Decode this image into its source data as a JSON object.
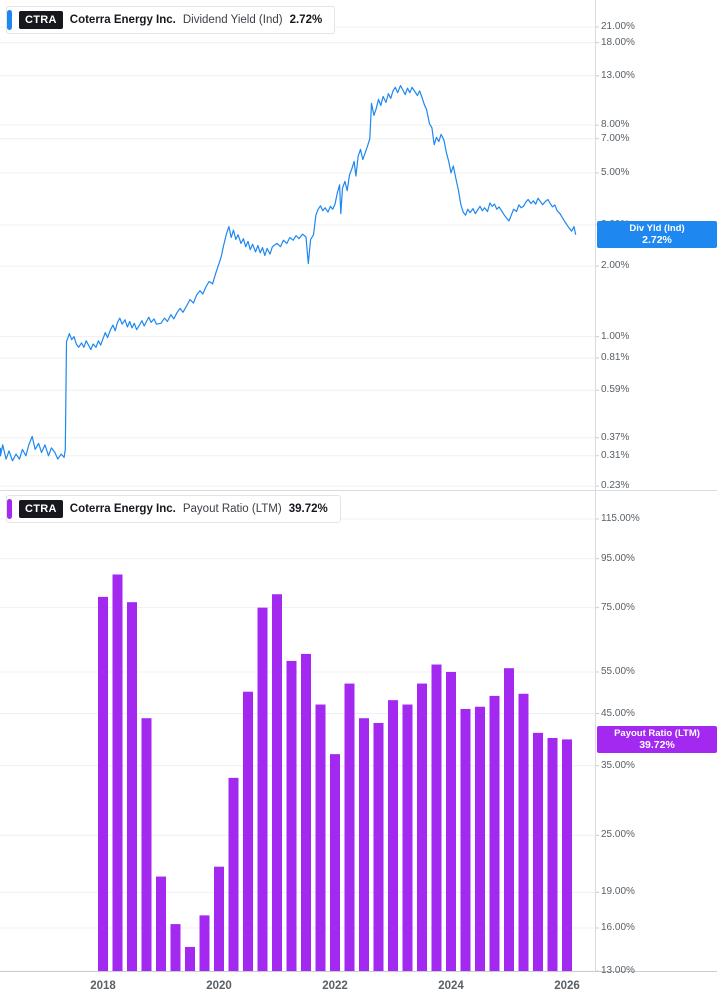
{
  "panels": [
    {
      "legend": {
        "ticker": "CTRA",
        "company": "Coterra Energy Inc.",
        "metric": "Dividend Yield (Ind)",
        "value": "2.72%"
      },
      "badge": {
        "line1": "Div Yld (Ind)",
        "line2": "2.72%",
        "v": 2.72
      },
      "color": "#1E87F0",
      "ticks": [
        [
          "21.00%",
          21
        ],
        [
          "18.00%",
          18
        ],
        [
          "13.00%",
          13
        ],
        [
          "8.00%",
          8
        ],
        [
          "7.00%",
          7
        ],
        [
          "5.00%",
          5
        ],
        [
          "3.00%",
          3
        ],
        [
          "2.00%",
          2
        ],
        [
          "1.00%",
          1
        ],
        [
          "0.81%",
          0.81
        ],
        [
          "0.59%",
          0.59
        ],
        [
          "0.37%",
          0.37
        ],
        [
          "0.31%",
          0.31
        ],
        [
          "0.23%",
          0.23
        ]
      ]
    },
    {
      "legend": {
        "ticker": "CTRA",
        "company": "Coterra Energy Inc.",
        "metric": "Payout Ratio (LTM)",
        "value": "39.72%"
      },
      "badge": {
        "line1": "Payout Ratio (LTM)",
        "line2": "39.72%",
        "v": 39.72
      },
      "color": "#A328F0",
      "ticks": [
        [
          "115.00%",
          115
        ],
        [
          "95.00%",
          95
        ],
        [
          "75.00%",
          75
        ],
        [
          "55.00%",
          55
        ],
        [
          "45.00%",
          45
        ],
        [
          "35.00%",
          35
        ],
        [
          "25.00%",
          25
        ],
        [
          "19.00%",
          19
        ],
        [
          "16.00%",
          16
        ],
        [
          "13.00%",
          13
        ]
      ]
    }
  ],
  "x_axis": {
    "labels": [
      "2018",
      "2020",
      "2022",
      "2024",
      "2026"
    ]
  },
  "chart_data": [
    {
      "type": "line",
      "name": "Dividend Yield (Ind)",
      "ticker": "CTRA",
      "unit": "percent",
      "x_unit": "decimal_year",
      "log_scale": true,
      "ylim": [
        0.228,
        25.3
      ],
      "xlim": [
        2016.17,
        2026.25
      ],
      "last_value": 2.72,
      "points": [
        [
          2016.17,
          0.335
        ],
        [
          2016.22,
          0.31
        ],
        [
          2016.27,
          0.345
        ],
        [
          2016.33,
          0.3
        ],
        [
          2016.38,
          0.325
        ],
        [
          2016.44,
          0.295
        ],
        [
          2016.5,
          0.315
        ],
        [
          2016.56,
          0.3
        ],
        [
          2016.61,
          0.33
        ],
        [
          2016.67,
          0.31
        ],
        [
          2016.72,
          0.345
        ],
        [
          2016.78,
          0.375
        ],
        [
          2016.83,
          0.33
        ],
        [
          2016.89,
          0.35
        ],
        [
          2016.94,
          0.32
        ],
        [
          2017.0,
          0.345
        ],
        [
          2017.06,
          0.31
        ],
        [
          2017.11,
          0.335
        ],
        [
          2017.17,
          0.32
        ],
        [
          2017.22,
          0.3
        ],
        [
          2017.28,
          0.315
        ],
        [
          2017.33,
          0.305
        ],
        [
          2017.35,
          0.33
        ],
        [
          2017.37,
          0.95
        ],
        [
          2017.42,
          1.03
        ],
        [
          2017.46,
          0.97
        ],
        [
          2017.5,
          1.0
        ],
        [
          2017.54,
          0.93
        ],
        [
          2017.58,
          0.9
        ],
        [
          2017.63,
          0.94
        ],
        [
          2017.67,
          0.9
        ],
        [
          2017.71,
          0.96
        ],
        [
          2017.75,
          0.92
        ],
        [
          2017.79,
          0.88
        ],
        [
          2017.83,
          0.93
        ],
        [
          2017.88,
          0.9
        ],
        [
          2017.92,
          0.96
        ],
        [
          2017.96,
          0.92
        ],
        [
          2018.0,
          0.98
        ],
        [
          2018.04,
          1.04
        ],
        [
          2018.08,
          0.99
        ],
        [
          2018.13,
          1.07
        ],
        [
          2018.17,
          1.12
        ],
        [
          2018.21,
          1.06
        ],
        [
          2018.25,
          1.15
        ],
        [
          2018.29,
          1.2
        ],
        [
          2018.33,
          1.13
        ],
        [
          2018.38,
          1.18
        ],
        [
          2018.42,
          1.1
        ],
        [
          2018.46,
          1.16
        ],
        [
          2018.5,
          1.09
        ],
        [
          2018.54,
          1.14
        ],
        [
          2018.58,
          1.07
        ],
        [
          2018.63,
          1.12
        ],
        [
          2018.67,
          1.17
        ],
        [
          2018.71,
          1.11
        ],
        [
          2018.75,
          1.16
        ],
        [
          2018.79,
          1.21
        ],
        [
          2018.83,
          1.15
        ],
        [
          2018.88,
          1.19
        ],
        [
          2018.92,
          1.13
        ],
        [
          2019.0,
          1.14
        ],
        [
          2019.06,
          1.2
        ],
        [
          2019.11,
          1.16
        ],
        [
          2019.17,
          1.24
        ],
        [
          2019.22,
          1.19
        ],
        [
          2019.28,
          1.27
        ],
        [
          2019.33,
          1.32
        ],
        [
          2019.38,
          1.27
        ],
        [
          2019.44,
          1.35
        ],
        [
          2019.5,
          1.44
        ],
        [
          2019.56,
          1.39
        ],
        [
          2019.61,
          1.5
        ],
        [
          2019.67,
          1.57
        ],
        [
          2019.72,
          1.52
        ],
        [
          2019.78,
          1.64
        ],
        [
          2019.83,
          1.72
        ],
        [
          2019.89,
          1.68
        ],
        [
          2019.94,
          1.85
        ],
        [
          2020.0,
          2.05
        ],
        [
          2020.04,
          2.2
        ],
        [
          2020.08,
          2.45
        ],
        [
          2020.13,
          2.75
        ],
        [
          2020.17,
          2.95
        ],
        [
          2020.21,
          2.65
        ],
        [
          2020.25,
          2.85
        ],
        [
          2020.29,
          2.6
        ],
        [
          2020.33,
          2.72
        ],
        [
          2020.38,
          2.5
        ],
        [
          2020.42,
          2.62
        ],
        [
          2020.46,
          2.42
        ],
        [
          2020.5,
          2.55
        ],
        [
          2020.54,
          2.35
        ],
        [
          2020.58,
          2.48
        ],
        [
          2020.63,
          2.3
        ],
        [
          2020.67,
          2.45
        ],
        [
          2020.71,
          2.28
        ],
        [
          2020.75,
          2.4
        ],
        [
          2020.79,
          2.22
        ],
        [
          2020.83,
          2.38
        ],
        [
          2020.88,
          2.25
        ],
        [
          2020.92,
          2.42
        ],
        [
          2021.0,
          2.5
        ],
        [
          2021.06,
          2.42
        ],
        [
          2021.11,
          2.58
        ],
        [
          2021.17,
          2.5
        ],
        [
          2021.22,
          2.65
        ],
        [
          2021.28,
          2.58
        ],
        [
          2021.33,
          2.7
        ],
        [
          2021.38,
          2.62
        ],
        [
          2021.44,
          2.74
        ],
        [
          2021.5,
          2.66
        ],
        [
          2021.54,
          2.05
        ],
        [
          2021.58,
          2.6
        ],
        [
          2021.63,
          2.72
        ],
        [
          2021.67,
          3.3
        ],
        [
          2021.71,
          3.5
        ],
        [
          2021.75,
          3.62
        ],
        [
          2021.79,
          3.45
        ],
        [
          2021.83,
          3.55
        ],
        [
          2021.88,
          3.4
        ],
        [
          2021.92,
          3.6
        ],
        [
          2021.96,
          3.5
        ],
        [
          2022.0,
          3.68
        ],
        [
          2022.04,
          4.1
        ],
        [
          2022.08,
          4.45
        ],
        [
          2022.1,
          3.35
        ],
        [
          2022.13,
          4.3
        ],
        [
          2022.17,
          4.6
        ],
        [
          2022.21,
          4.2
        ],
        [
          2022.25,
          4.9
        ],
        [
          2022.29,
          5.2
        ],
        [
          2022.33,
          5.6
        ],
        [
          2022.36,
          4.85
        ],
        [
          2022.4,
          5.9
        ],
        [
          2022.44,
          6.3
        ],
        [
          2022.48,
          5.7
        ],
        [
          2022.52,
          6.1
        ],
        [
          2022.56,
          6.5
        ],
        [
          2022.6,
          7.0
        ],
        [
          2022.63,
          9.9
        ],
        [
          2022.67,
          8.8
        ],
        [
          2022.71,
          9.4
        ],
        [
          2022.75,
          10.3
        ],
        [
          2022.79,
          9.7
        ],
        [
          2022.83,
          10.6
        ],
        [
          2022.88,
          10.0
        ],
        [
          2022.92,
          10.9
        ],
        [
          2022.96,
          10.4
        ],
        [
          2023.0,
          11.2
        ],
        [
          2023.04,
          11.6
        ],
        [
          2023.08,
          11.0
        ],
        [
          2023.13,
          11.8
        ],
        [
          2023.17,
          11.3
        ],
        [
          2023.21,
          10.8
        ],
        [
          2023.25,
          11.5
        ],
        [
          2023.29,
          11.0
        ],
        [
          2023.33,
          11.6
        ],
        [
          2023.38,
          11.1
        ],
        [
          2023.42,
          10.7
        ],
        [
          2023.46,
          11.2
        ],
        [
          2023.5,
          10.5
        ],
        [
          2023.54,
          9.8
        ],
        [
          2023.58,
          9.3
        ],
        [
          2023.63,
          8.1
        ],
        [
          2023.67,
          7.8
        ],
        [
          2023.71,
          6.6
        ],
        [
          2023.75,
          7.1
        ],
        [
          2023.79,
          6.8
        ],
        [
          2023.83,
          7.3
        ],
        [
          2023.88,
          6.9
        ],
        [
          2023.92,
          6.1
        ],
        [
          2023.96,
          5.6
        ],
        [
          2024.0,
          5.0
        ],
        [
          2024.04,
          5.35
        ],
        [
          2024.08,
          4.8
        ],
        [
          2024.13,
          4.2
        ],
        [
          2024.17,
          3.65
        ],
        [
          2024.21,
          3.4
        ],
        [
          2024.25,
          3.3
        ],
        [
          2024.29,
          3.5
        ],
        [
          2024.33,
          3.38
        ],
        [
          2024.38,
          3.52
        ],
        [
          2024.42,
          3.35
        ],
        [
          2024.46,
          3.48
        ],
        [
          2024.5,
          3.6
        ],
        [
          2024.54,
          3.45
        ],
        [
          2024.58,
          3.55
        ],
        [
          2024.63,
          3.42
        ],
        [
          2024.67,
          3.72
        ],
        [
          2024.71,
          3.6
        ],
        [
          2024.75,
          3.68
        ],
        [
          2024.79,
          3.5
        ],
        [
          2024.83,
          3.58
        ],
        [
          2024.88,
          3.42
        ],
        [
          2024.92,
          3.3
        ],
        [
          2024.96,
          3.2
        ],
        [
          2025.0,
          3.12
        ],
        [
          2025.04,
          3.3
        ],
        [
          2025.08,
          3.5
        ],
        [
          2025.13,
          3.42
        ],
        [
          2025.17,
          3.65
        ],
        [
          2025.21,
          3.55
        ],
        [
          2025.25,
          3.6
        ],
        [
          2025.29,
          3.75
        ],
        [
          2025.33,
          3.85
        ],
        [
          2025.38,
          3.7
        ],
        [
          2025.42,
          3.8
        ],
        [
          2025.46,
          3.68
        ],
        [
          2025.5,
          3.9
        ],
        [
          2025.54,
          3.78
        ],
        [
          2025.58,
          3.66
        ],
        [
          2025.63,
          3.78
        ],
        [
          2025.67,
          3.85
        ],
        [
          2025.71,
          3.7
        ],
        [
          2025.75,
          3.58
        ],
        [
          2025.79,
          3.65
        ],
        [
          2025.83,
          3.45
        ],
        [
          2025.88,
          3.35
        ],
        [
          2025.92,
          3.22
        ],
        [
          2025.96,
          3.1
        ],
        [
          2026.0,
          3.0
        ],
        [
          2026.04,
          2.9
        ],
        [
          2026.08,
          2.82
        ],
        [
          2026.12,
          2.95
        ],
        [
          2026.15,
          2.72
        ]
      ]
    },
    {
      "type": "bar",
      "name": "Payout Ratio (LTM)",
      "ticker": "CTRA",
      "unit": "percent",
      "x_unit": "decimal_year_quarterly",
      "log_scale": true,
      "ylim": [
        13,
        131
      ],
      "last_value": 39.72,
      "points": [
        [
          2018.0,
          79
        ],
        [
          2018.25,
          88
        ],
        [
          2018.5,
          77
        ],
        [
          2018.75,
          44
        ],
        [
          2019.0,
          20.5
        ],
        [
          2019.25,
          16.3
        ],
        [
          2019.5,
          14.6
        ],
        [
          2019.75,
          17
        ],
        [
          2020.0,
          21.5
        ],
        [
          2020.25,
          33
        ],
        [
          2020.5,
          50
        ],
        [
          2020.75,
          75
        ],
        [
          2021.0,
          80
        ],
        [
          2021.25,
          58
        ],
        [
          2021.5,
          60
        ],
        [
          2021.75,
          47
        ],
        [
          2022.0,
          37
        ],
        [
          2022.25,
          52
        ],
        [
          2022.5,
          44
        ],
        [
          2022.75,
          43
        ],
        [
          2023.0,
          48
        ],
        [
          2023.25,
          47
        ],
        [
          2023.5,
          52
        ],
        [
          2023.75,
          57
        ],
        [
          2024.0,
          55
        ],
        [
          2024.25,
          46
        ],
        [
          2024.5,
          46.5
        ],
        [
          2024.75,
          49
        ],
        [
          2025.0,
          56
        ],
        [
          2025.25,
          49.5
        ],
        [
          2025.5,
          41
        ],
        [
          2025.75,
          40
        ],
        [
          2026.0,
          39.72
        ]
      ]
    }
  ]
}
